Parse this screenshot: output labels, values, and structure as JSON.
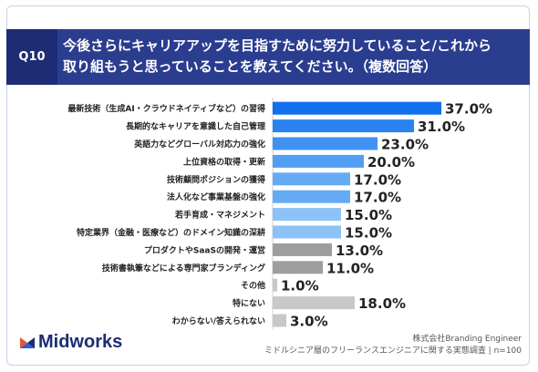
{
  "header": {
    "question_id": "Q10",
    "question_lines": [
      "今後さらにキャリアアップを目指すために努力していること/これから",
      "取り組もうと思っていることを教えてください。（複数回答）"
    ]
  },
  "chart_data": {
    "type": "bar",
    "orientation": "horizontal",
    "categories": [
      "最新技術（生成AI・クラウドネイティブなど）の習得",
      "長期的なキャリアを意識した自己管理",
      "英語力などグローバル対応力の強化",
      "上位資格の取得・更新",
      "技術顧問ポジションの獲得",
      "法人化など事業基盤の強化",
      "若手育成・マネジメント",
      "特定業界（金融・医療など）のドメイン知識の深耕",
      "プロダクトやSaaSの開発・運営",
      "技術書執筆などによる専門家ブランディング",
      "その他",
      "特にない",
      "わからない/答えられない"
    ],
    "values": [
      37.0,
      31.0,
      23.0,
      20.0,
      17.0,
      17.0,
      15.0,
      15.0,
      13.0,
      11.0,
      1.0,
      18.0,
      3.0
    ],
    "value_labels": [
      "37.0%",
      "31.0%",
      "23.0%",
      "20.0%",
      "17.0%",
      "17.0%",
      "15.0%",
      "15.0%",
      "13.0%",
      "11.0%",
      "1.0%",
      "18.0%",
      "3.0%"
    ],
    "bar_colors": [
      "#1170ec",
      "#2b83f0",
      "#3f92f2",
      "#529ef3",
      "#65abf4",
      "#65abf4",
      "#8cc2f8",
      "#8cc2f8",
      "#9e9e9e",
      "#9e9e9e",
      "#c8c8c8",
      "#c8c8c8",
      "#c8c8c8"
    ],
    "xlim": [
      0,
      37
    ],
    "grid": false,
    "legend": "none"
  },
  "branding": {
    "logo_text": "Midworks"
  },
  "source": {
    "line1": "株式会社Branding Engineer",
    "line2": "ミドルシニア層のフリーランスエンジニアに関する実態調査 | n=100"
  }
}
